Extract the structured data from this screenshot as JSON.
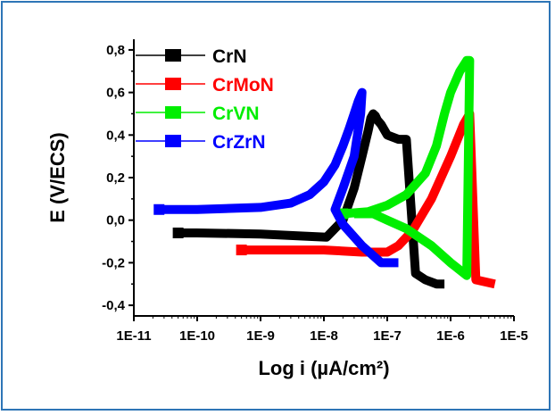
{
  "chart_data": {
    "type": "line",
    "xlabel": "Log i (µA/cm²)",
    "ylabel": "E (V/ECS)",
    "x_scale": "log",
    "xlim": [
      1e-11,
      1e-05
    ],
    "ylim": [
      -0.45,
      0.85
    ],
    "x_ticks": [
      1e-11,
      1e-10,
      1e-09,
      1e-08,
      1e-07,
      1e-06,
      1e-05
    ],
    "x_tick_labels": [
      "1E-11",
      "1E-10",
      "1E-9",
      "1E-8",
      "1E-7",
      "1E-6",
      "1E-5"
    ],
    "y_ticks": [
      -0.4,
      -0.2,
      0.0,
      0.2,
      0.4,
      0.6,
      0.8
    ],
    "y_tick_labels": [
      "-0,4",
      "-0,2",
      "0,0",
      "0,2",
      "0,4",
      "0,6",
      "0,8"
    ],
    "grid": false,
    "legend_position": "top-left",
    "series": [
      {
        "name": "CrN",
        "color": "#000000",
        "x": [
          5e-11,
          1e-10,
          1e-09,
          5e-09,
          1.1e-08,
          2e-08,
          3e-08,
          4e-08,
          5e-08,
          5.5e-08,
          6e-08,
          6.5e-08,
          7e-08,
          8e-08,
          1e-07,
          1.5e-07,
          2e-07,
          2.8e-07,
          4e-07,
          6e-07,
          8e-07
        ],
        "y": [
          -0.06,
          -0.06,
          -0.065,
          -0.075,
          -0.08,
          0.0,
          0.15,
          0.3,
          0.42,
          0.48,
          0.5,
          0.49,
          0.47,
          0.45,
          0.4,
          0.38,
          0.38,
          -0.25,
          -0.28,
          -0.3,
          -0.3
        ]
      },
      {
        "name": "CrMoN",
        "color": "#ff0000",
        "x": [
          5e-10,
          1e-09,
          2e-09,
          5e-09,
          1e-08,
          4e-08,
          1e-07,
          1.5e-07,
          2.5e-07,
          5e-07,
          1e-06,
          1.6e-06,
          2e-06,
          2.5e-06,
          5e-06
        ],
        "y": [
          -0.14,
          -0.14,
          -0.14,
          -0.14,
          -0.14,
          -0.15,
          -0.15,
          -0.12,
          -0.05,
          0.1,
          0.3,
          0.45,
          0.5,
          -0.28,
          -0.3
        ]
      },
      {
        "name": "CrVN",
        "color": "#00ee00",
        "x": [
          2e-08,
          5e-08,
          1e-07,
          2e-07,
          4e-07,
          6e-07,
          8e-07,
          1e-06,
          1.4e-06,
          1.8e-06,
          2e-06,
          1.8e-06,
          1e-06,
          5e-07,
          2e-07,
          1e-07,
          6e-08,
          3e-08
        ],
        "y": [
          0.03,
          0.04,
          0.07,
          0.12,
          0.22,
          0.35,
          0.5,
          0.6,
          0.7,
          0.75,
          0.75,
          -0.26,
          -0.2,
          -0.12,
          -0.04,
          0.0,
          0.03,
          0.03
        ]
      },
      {
        "name": "CrZrN",
        "color": "#0000ff",
        "x": [
          2.5e-11,
          1e-10,
          1e-09,
          3e-09,
          6e-09,
          1e-08,
          1.5e-08,
          2e-08,
          2.5e-08,
          3e-08,
          3.5e-08,
          4e-08,
          3.8e-08,
          3e-08,
          2e-08,
          1.5e-08,
          2e-08,
          4e-08,
          8e-08,
          1.5e-07
        ],
        "y": [
          0.05,
          0.05,
          0.06,
          0.08,
          0.12,
          0.18,
          0.26,
          0.35,
          0.43,
          0.5,
          0.56,
          0.6,
          0.5,
          0.3,
          0.15,
          0.05,
          -0.02,
          -0.12,
          -0.2,
          -0.2
        ]
      }
    ]
  }
}
